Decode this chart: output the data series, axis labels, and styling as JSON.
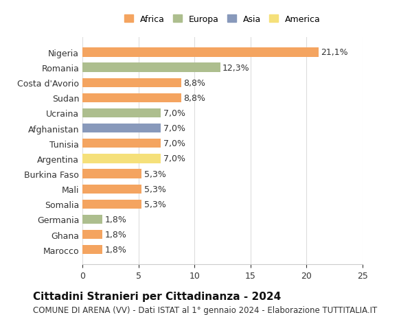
{
  "countries": [
    "Marocco",
    "Ghana",
    "Germania",
    "Somalia",
    "Mali",
    "Burkina Faso",
    "Argentina",
    "Tunisia",
    "Afghanistan",
    "Ucraina",
    "Sudan",
    "Costa d'Avorio",
    "Romania",
    "Nigeria"
  ],
  "values": [
    1.8,
    1.8,
    1.8,
    5.3,
    5.3,
    5.3,
    7.0,
    7.0,
    7.0,
    7.0,
    8.8,
    8.8,
    12.3,
    21.1
  ],
  "labels": [
    "1,8%",
    "1,8%",
    "1,8%",
    "5,3%",
    "5,3%",
    "5,3%",
    "7,0%",
    "7,0%",
    "7,0%",
    "7,0%",
    "8,8%",
    "8,8%",
    "12,3%",
    "21,1%"
  ],
  "colors": [
    "#F4A460",
    "#F4A460",
    "#ADBE8E",
    "#F4A460",
    "#F4A460",
    "#F4A460",
    "#F5E07A",
    "#F4A460",
    "#8899BB",
    "#ADBE8E",
    "#F4A460",
    "#F4A460",
    "#ADBE8E",
    "#F4A460"
  ],
  "legend_names": [
    "Africa",
    "Europa",
    "Asia",
    "America"
  ],
  "legend_colors": [
    "#F4A460",
    "#ADBE8E",
    "#8899BB",
    "#F5E07A"
  ],
  "title": "Cittadini Stranieri per Cittadinanza - 2024",
  "subtitle": "COMUNE DI ARENA (VV) - Dati ISTAT al 1° gennaio 2024 - Elaborazione TUTTITALIA.IT",
  "xlim": [
    0,
    25
  ],
  "xticks": [
    0,
    5,
    10,
    15,
    20,
    25
  ],
  "background_color": "#ffffff",
  "bar_height": 0.6,
  "grid_color": "#dddddd",
  "label_fontsize": 9,
  "title_fontsize": 11,
  "subtitle_fontsize": 8.5
}
